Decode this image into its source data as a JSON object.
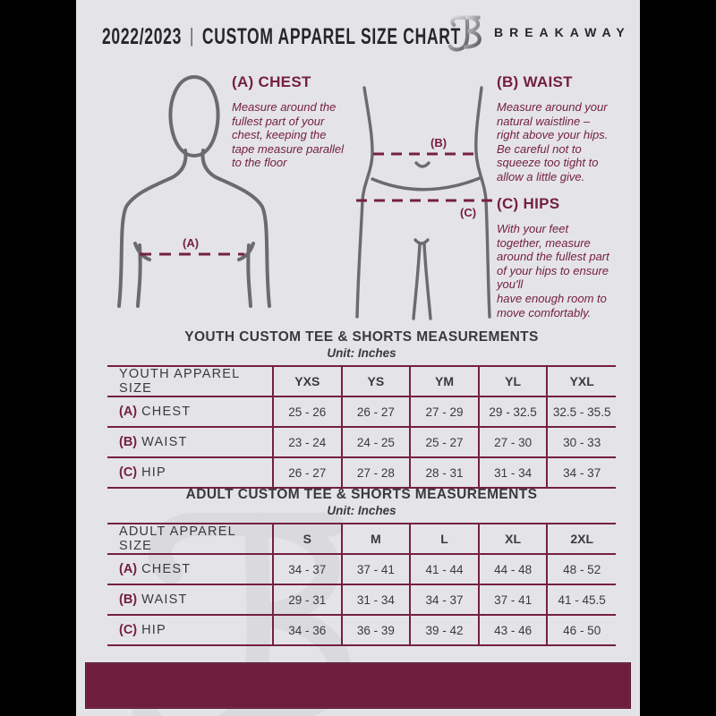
{
  "header": {
    "year": "2022/2023",
    "divider": "|",
    "title": "CUSTOM APPAREL SIZE CHART",
    "brand": "BREAKAWAY",
    "logo_icon": "breakaway-b-monogram"
  },
  "colors": {
    "maroon": "#75203E",
    "maroon_dark": "#6E1E3A",
    "background": "#E4E4E6",
    "pillar": "#000000",
    "figure_stroke": "#6B6B6D",
    "text_dark": "#3A3A3D",
    "brand_dark": "#26262A",
    "watermark": "#D9D9DB"
  },
  "figures": {
    "chest_label": "(A)",
    "waist_label": "(B)",
    "hip_label": "(C)"
  },
  "guides": [
    {
      "heading": "(A) CHEST",
      "body": "Measure around the\nfullest part of your\nchest, keeping the\ntape measure parallel\nto the floor"
    },
    {
      "heading": "(B) WAIST",
      "body": "Measure around your\nnatural waistline –\nright above your hips.\nBe careful not to\nsqueeze too tight to\nallow a little give."
    },
    {
      "heading": "(C) HIPS",
      "body": "With your feet\ntogether, measure\naround the fullest part\nof your hips to ensure\nyou'll\nhave enough room to\nmove comfortably."
    }
  ],
  "tables": [
    {
      "title": "YOUTH CUSTOM TEE & SHORTS MEASUREMENTS",
      "unit": "Unit: Inches",
      "size_label": "YOUTH APPAREL SIZE",
      "columns": [
        "YXS",
        "YS",
        "YM",
        "YL",
        "YXL"
      ],
      "rows": [
        {
          "key": "(A)",
          "label": "CHEST",
          "values": [
            "25 - 26",
            "26 - 27",
            "27 - 29",
            "29 - 32.5",
            "32.5 - 35.5"
          ]
        },
        {
          "key": "(B)",
          "label": "WAIST",
          "values": [
            "23 - 24",
            "24 - 25",
            "25 - 27",
            "27 - 30",
            "30 - 33"
          ]
        },
        {
          "key": "(C)",
          "label": "HIP",
          "values": [
            "26 - 27",
            "27 - 28",
            "28 - 31",
            "31 - 34",
            "34 - 37"
          ]
        }
      ]
    },
    {
      "title": "ADULT CUSTOM TEE & SHORTS MEASUREMENTS",
      "unit": "Unit: Inches",
      "size_label": "ADULT APPAREL SIZE",
      "columns": [
        "S",
        "M",
        "L",
        "XL",
        "2XL"
      ],
      "rows": [
        {
          "key": "(A)",
          "label": "CHEST",
          "values": [
            "34 - 37",
            "37 - 41",
            "41 - 44",
            "44 - 48",
            "48 - 52"
          ]
        },
        {
          "key": "(B)",
          "label": "WAIST",
          "values": [
            "29 - 31",
            "31 - 34",
            "34 - 37",
            "37 - 41",
            "41 - 45.5"
          ]
        },
        {
          "key": "(C)",
          "label": "HIP",
          "values": [
            "34 - 36",
            "36 - 39",
            "39 - 42",
            "43 - 46",
            "46 - 50"
          ]
        }
      ]
    }
  ],
  "watermark_icon": "breakaway-b-watermark"
}
